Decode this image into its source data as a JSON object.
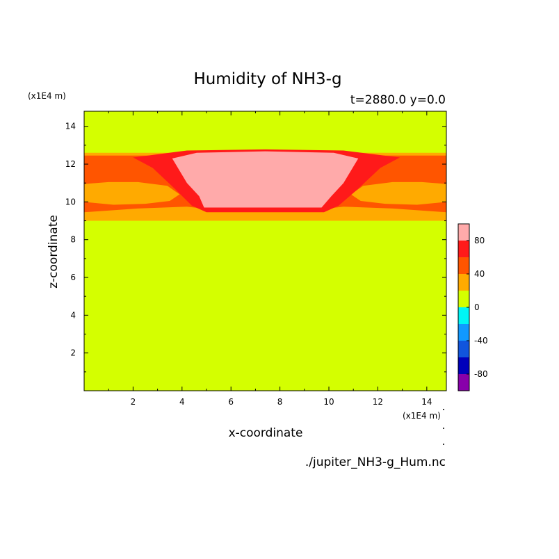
{
  "chart_data": {
    "type": "heatmap",
    "title": "Humidity of NH3-g",
    "subtitle": "t=2880.0 y=0.0",
    "xlabel": "x-coordinate",
    "ylabel": "z-coordinate",
    "x_unit": "(x1E4 m)",
    "y_unit": "(x1E4 m)",
    "xlim": [
      0.0,
      14.8
    ],
    "ylim": [
      0.0,
      14.8
    ],
    "xticks": [
      2,
      4,
      6,
      8,
      10,
      12,
      14
    ],
    "yticks": [
      2,
      4,
      6,
      8,
      10,
      12,
      14
    ],
    "background_value": 10,
    "colorbar": {
      "range": [
        -100,
        100
      ],
      "levels": [
        -100,
        -80,
        -60,
        -40,
        -20,
        0,
        20,
        40,
        60,
        80,
        100
      ],
      "colors": [
        "#8800aa",
        "#0000bb",
        "#1155dd",
        "#1199ff",
        "#00f5f5",
        "#d4ff00",
        "#ffaa00",
        "#ff5500",
        "#ff1a1a",
        "#ffaaaa"
      ],
      "tick_labels": [
        "80",
        "40",
        "0",
        "-40",
        "-80"
      ],
      "tick_values": [
        80,
        40,
        0,
        -40,
        -80
      ]
    },
    "regions": [
      {
        "value": 30,
        "outline": [
          [
            0,
            9.0
          ],
          [
            14.8,
            9.0
          ],
          [
            14.8,
            12.6
          ],
          [
            0,
            12.6
          ]
        ]
      },
      {
        "value": 50,
        "outline": [
          [
            0,
            9.45
          ],
          [
            2.2,
            9.65
          ],
          [
            4.2,
            9.75
          ],
          [
            5.2,
            9.6
          ],
          [
            9.6,
            9.6
          ],
          [
            10.6,
            9.75
          ],
          [
            12.6,
            9.65
          ],
          [
            14.8,
            9.45
          ],
          [
            14.8,
            12.45
          ],
          [
            0,
            12.45
          ]
        ]
      },
      {
        "value": 30,
        "outline": [
          [
            0,
            10.0
          ],
          [
            1.2,
            9.85
          ],
          [
            2.5,
            9.9
          ],
          [
            3.5,
            10.05
          ],
          [
            3.9,
            10.4
          ],
          [
            3.4,
            10.85
          ],
          [
            2.2,
            11.05
          ],
          [
            1.0,
            11.05
          ],
          [
            0,
            10.95
          ]
        ]
      },
      {
        "value": 30,
        "outline": [
          [
            14.8,
            10.0
          ],
          [
            13.6,
            9.85
          ],
          [
            12.3,
            9.9
          ],
          [
            11.3,
            10.05
          ],
          [
            10.9,
            10.4
          ],
          [
            11.4,
            10.85
          ],
          [
            12.6,
            11.05
          ],
          [
            13.8,
            11.05
          ],
          [
            14.8,
            10.95
          ]
        ]
      },
      {
        "value": 70,
        "outline": [
          [
            5.0,
            9.45
          ],
          [
            9.8,
            9.45
          ],
          [
            10.4,
            9.8
          ],
          [
            11.2,
            10.7
          ],
          [
            12.1,
            11.8
          ],
          [
            12.9,
            12.35
          ],
          [
            10.6,
            12.72
          ],
          [
            7.4,
            12.78
          ],
          [
            4.2,
            12.72
          ],
          [
            2.0,
            12.35
          ],
          [
            2.8,
            11.8
          ],
          [
            3.7,
            10.7
          ],
          [
            4.4,
            9.8
          ]
        ]
      },
      {
        "value": 90,
        "outline": [
          [
            4.9,
            9.7
          ],
          [
            9.7,
            9.7
          ],
          [
            10.1,
            10.3
          ],
          [
            10.6,
            11.0
          ],
          [
            11.2,
            12.3
          ],
          [
            10.2,
            12.6
          ],
          [
            7.4,
            12.68
          ],
          [
            4.6,
            12.6
          ],
          [
            3.6,
            12.3
          ],
          [
            4.2,
            11.0
          ],
          [
            4.7,
            10.3
          ]
        ]
      },
      {
        "value": 100,
        "outline": [
          [
            6.0,
            9.75
          ],
          [
            8.9,
            9.75
          ],
          [
            9.4,
            9.95
          ],
          [
            9.8,
            10.35
          ],
          [
            9.8,
            10.85
          ],
          [
            9.3,
            11.25
          ],
          [
            8.4,
            11.4
          ],
          [
            7.1,
            11.4
          ],
          [
            6.1,
            11.2
          ],
          [
            5.4,
            10.8
          ],
          [
            5.2,
            10.35
          ],
          [
            5.5,
            9.95
          ]
        ]
      }
    ]
  },
  "footer": {
    "filename": "./jupiter_NH3-g_Hum.nc"
  }
}
